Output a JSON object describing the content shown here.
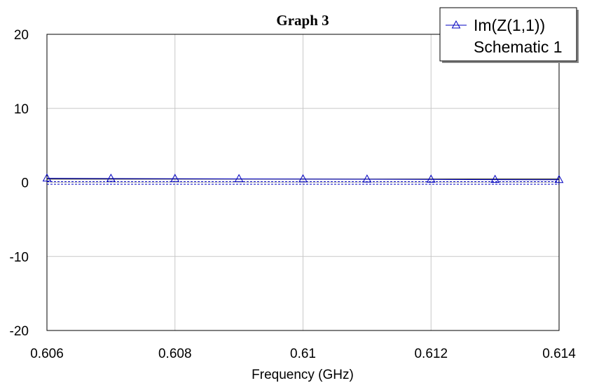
{
  "chart_data": {
    "type": "line",
    "title": "Graph 3",
    "xlabel": "Frequency (GHz)",
    "ylabel": "",
    "xlim": [
      0.606,
      0.614
    ],
    "ylim": [
      -20,
      20
    ],
    "x_ticks": [
      "0.606",
      "0.608",
      "0.61",
      "0.612",
      "0.614"
    ],
    "x_tick_values": [
      0.606,
      0.608,
      0.61,
      0.612,
      0.614
    ],
    "y_ticks": [
      "20",
      "10",
      "0",
      "-10",
      "-20"
    ],
    "y_tick_values": [
      20,
      10,
      0,
      -10,
      -20
    ],
    "x_grid": [
      0.606,
      0.608,
      0.61,
      0.612,
      0.614
    ],
    "y_grid": [
      -20,
      -10,
      0,
      10,
      20
    ],
    "grid": true,
    "legend_position": "top-right",
    "series": [
      {
        "name": "Im(Z(1,1))",
        "subname": "Schematic 1",
        "color": "#0000c0",
        "marker": "triangle",
        "x": [
          0.606,
          0.607,
          0.608,
          0.609,
          0.61,
          0.611,
          0.612,
          0.613,
          0.614
        ],
        "values": [
          0.55,
          0.52,
          0.5,
          0.47,
          0.45,
          0.42,
          0.4,
          0.37,
          0.35
        ]
      }
    ],
    "extra_lines": [
      {
        "color": "#000000",
        "style": "solid",
        "y": [
          0.45,
          0.45
        ]
      },
      {
        "color": "#0000c0",
        "style": "dashed",
        "y": [
          -0.25,
          -0.25
        ]
      },
      {
        "color": "#0000c0",
        "style": "dashed",
        "y": [
          0.1,
          0.1
        ]
      }
    ]
  }
}
